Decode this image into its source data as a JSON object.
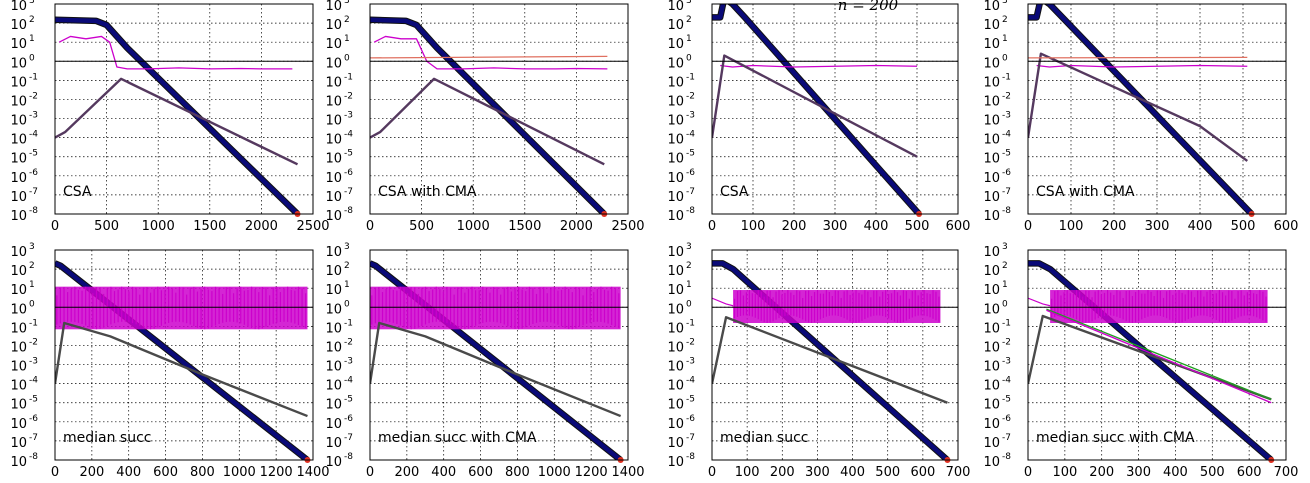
{
  "figure": {
    "top_label": "n = 200"
  },
  "chart_data": [
    {
      "id": "p1",
      "type": "line",
      "label": "CSA",
      "xlim": [
        0,
        2500
      ],
      "ylim_exp": [
        -8,
        3
      ],
      "log_y": true,
      "xticks": [
        "0",
        "500",
        "1000",
        "1500",
        "2000",
        "2500"
      ],
      "series": [
        {
          "role": "f",
          "color": "#0a0a78",
          "points": [
            [
              0,
              150
            ],
            [
              400,
              130
            ],
            [
              500,
              80
            ],
            [
              600,
              20
            ],
            [
              700,
              5
            ],
            [
              2350,
              1e-08
            ]
          ]
        },
        {
          "role": "step",
          "color": "#cc00cc",
          "points": [
            [
              40,
              10
            ],
            [
              150,
              20
            ],
            [
              300,
              15
            ],
            [
              450,
              20
            ],
            [
              530,
              10
            ],
            [
              600,
              0.5
            ],
            [
              700,
              0.4
            ],
            [
              900,
              0.4
            ],
            [
              1200,
              0.45
            ],
            [
              1500,
              0.4
            ],
            [
              1800,
              0.42
            ],
            [
              2000,
              0.4
            ],
            [
              2300,
              0.4
            ]
          ]
        },
        {
          "role": "sigma",
          "color": "#55395f",
          "points": [
            [
              0,
              0.0001
            ],
            [
              100,
              0.0002
            ],
            [
              640,
              0.12
            ],
            [
              2350,
              4e-06
            ]
          ]
        },
        {
          "role": "reference",
          "color": "#000000",
          "points": [
            [
              0,
              1
            ],
            [
              2500,
              1
            ]
          ]
        }
      ]
    },
    {
      "id": "p2",
      "type": "line",
      "label": "CSA with CMA",
      "xlim": [
        0,
        2500
      ],
      "ylim_exp": [
        -8,
        3
      ],
      "log_y": true,
      "xticks": [
        "0",
        "500",
        "1000",
        "1500",
        "2000",
        "2500"
      ],
      "series": [
        {
          "role": "f",
          "color": "#0a0a78",
          "points": [
            [
              0,
              150
            ],
            [
              350,
              130
            ],
            [
              450,
              80
            ],
            [
              550,
              20
            ],
            [
              650,
              5
            ],
            [
              2270,
              1e-08
            ]
          ]
        },
        {
          "role": "step",
          "color": "#cc00cc",
          "points": [
            [
              40,
              10
            ],
            [
              150,
              20
            ],
            [
              300,
              15
            ],
            [
              450,
              15
            ],
            [
              550,
              1
            ],
            [
              650,
              0.4
            ],
            [
              900,
              0.4
            ],
            [
              1200,
              0.45
            ],
            [
              1500,
              0.4
            ],
            [
              1800,
              0.4
            ],
            [
              2000,
              0.42
            ],
            [
              2300,
              0.4
            ]
          ]
        },
        {
          "role": "sigma",
          "color": "#55395f",
          "points": [
            [
              0,
              0.0001
            ],
            [
              100,
              0.0002
            ],
            [
              620,
              0.12
            ],
            [
              2270,
              4e-06
            ]
          ]
        },
        {
          "role": "axis-ratio",
          "color": "#e07060",
          "points": [
            [
              0,
              1.5
            ],
            [
              2300,
              1.8
            ]
          ]
        },
        {
          "role": "reference",
          "color": "#000000",
          "points": [
            [
              0,
              1
            ],
            [
              2500,
              1
            ]
          ]
        }
      ]
    },
    {
      "id": "p3",
      "type": "line",
      "label": "CSA",
      "xlim": [
        0,
        600
      ],
      "ylim_exp": [
        -8,
        3
      ],
      "log_y": true,
      "xticks": [
        "0",
        "100",
        "200",
        "300",
        "400",
        "500",
        "600"
      ],
      "series": [
        {
          "role": "f",
          "color": "#0a0a78",
          "points": [
            [
              0,
              200
            ],
            [
              20,
              200
            ],
            [
              30,
              2000
            ],
            [
              50,
              1000
            ],
            [
              80,
              200
            ],
            [
              505,
              1e-08
            ]
          ]
        },
        {
          "role": "step",
          "color": "#cc00cc",
          "points": [
            [
              20,
              0.6
            ],
            [
              50,
              0.5
            ],
            [
              100,
              0.6
            ],
            [
              200,
              0.5
            ],
            [
              300,
              0.55
            ],
            [
              400,
              0.6
            ],
            [
              500,
              0.55
            ]
          ]
        },
        {
          "role": "sigma",
          "color": "#55395f",
          "points": [
            [
              0,
              0.0001
            ],
            [
              30,
              2
            ],
            [
              500,
              1e-05
            ]
          ]
        },
        {
          "role": "reference",
          "color": "#000000",
          "points": [
            [
              0,
              1
            ],
            [
              600,
              1
            ]
          ]
        }
      ]
    },
    {
      "id": "p4",
      "type": "line",
      "label": "CSA with CMA",
      "xlim": [
        0,
        600
      ],
      "ylim_exp": [
        -8,
        3
      ],
      "log_y": true,
      "xticks": [
        "0",
        "100",
        "200",
        "300",
        "400",
        "500",
        "600"
      ],
      "series": [
        {
          "role": "f",
          "color": "#0a0a78",
          "points": [
            [
              0,
              200
            ],
            [
              20,
              200
            ],
            [
              30,
              2000
            ],
            [
              50,
              1000
            ],
            [
              80,
              200
            ],
            [
              520,
              1e-08
            ]
          ]
        },
        {
          "role": "step",
          "color": "#cc00cc",
          "points": [
            [
              20,
              0.6
            ],
            [
              50,
              0.5
            ],
            [
              100,
              0.6
            ],
            [
              200,
              0.5
            ],
            [
              300,
              0.55
            ],
            [
              400,
              0.6
            ],
            [
              510,
              0.55
            ]
          ]
        },
        {
          "role": "sigma",
          "color": "#55395f",
          "points": [
            [
              0,
              0.0001
            ],
            [
              30,
              2.5
            ],
            [
              400,
              0.0004
            ],
            [
              510,
              6e-06
            ]
          ]
        },
        {
          "role": "axis-ratio",
          "color": "#e07060",
          "points": [
            [
              0,
              1.5
            ],
            [
              510,
              1.6
            ]
          ]
        },
        {
          "role": "reference",
          "color": "#000000",
          "points": [
            [
              0,
              1
            ],
            [
              600,
              1
            ]
          ]
        }
      ]
    },
    {
      "id": "p5",
      "type": "line",
      "label": "median succ",
      "xlim": [
        0,
        1400
      ],
      "ylim_exp": [
        -8,
        3
      ],
      "log_y": true,
      "xticks": [
        "0",
        "200",
        "400",
        "600",
        "800",
        "1000",
        "1200",
        "1400"
      ],
      "series": [
        {
          "role": "f",
          "color": "#0a0a78",
          "points": [
            [
              0,
              200
            ],
            [
              30,
              150
            ],
            [
              1370,
              1e-08
            ]
          ]
        },
        {
          "role": "step",
          "color": "#cc00cc",
          "band": [
            0.07,
            12
          ],
          "points": [
            [
              0,
              1.2
            ],
            [
              1370,
              1.2
            ]
          ]
        },
        {
          "role": "sigma",
          "color": "#4a4a4a",
          "points": [
            [
              0,
              0.0001
            ],
            [
              50,
              0.15
            ],
            [
              300,
              0.03
            ],
            [
              800,
              0.0003
            ],
            [
              1370,
              2e-06
            ]
          ]
        },
        {
          "role": "reference",
          "color": "#000000",
          "points": [
            [
              0,
              1
            ],
            [
              1400,
              1
            ]
          ]
        }
      ]
    },
    {
      "id": "p6",
      "type": "line",
      "label": "median succ with CMA",
      "xlim": [
        0,
        1400
      ],
      "ylim_exp": [
        -8,
        3
      ],
      "log_y": true,
      "xticks": [
        "0",
        "200",
        "400",
        "600",
        "800",
        "1000",
        "1200",
        "1400"
      ],
      "series": [
        {
          "role": "f",
          "color": "#0a0a78",
          "points": [
            [
              0,
              200
            ],
            [
              30,
              150
            ],
            [
              1360,
              1e-08
            ]
          ]
        },
        {
          "role": "step",
          "color": "#cc00cc",
          "band": [
            0.07,
            12
          ],
          "points": [
            [
              0,
              1.2
            ],
            [
              1360,
              1.2
            ]
          ]
        },
        {
          "role": "sigma",
          "color": "#4a4a4a",
          "points": [
            [
              0,
              0.0001
            ],
            [
              50,
              0.15
            ],
            [
              300,
              0.03
            ],
            [
              800,
              0.0003
            ],
            [
              1360,
              2e-06
            ]
          ]
        },
        {
          "role": "reference",
          "color": "#000000",
          "points": [
            [
              0,
              1
            ],
            [
              1400,
              1
            ]
          ]
        }
      ]
    },
    {
      "id": "p7",
      "type": "line",
      "label": "median succ",
      "xlim": [
        0,
        700
      ],
      "ylim_exp": [
        -8,
        3
      ],
      "log_y": true,
      "xticks": [
        "0",
        "100",
        "200",
        "300",
        "400",
        "500",
        "600",
        "700"
      ],
      "series": [
        {
          "role": "f",
          "color": "#0a0a78",
          "points": [
            [
              0,
              200
            ],
            [
              30,
              200
            ],
            [
              60,
              100
            ],
            [
              670,
              1e-08
            ]
          ]
        },
        {
          "role": "step",
          "color": "#cc00cc",
          "band": [
            0.15,
            8
          ],
          "points": [
            [
              0,
              3
            ],
            [
              40,
              1.5
            ],
            [
              60,
              1.2
            ],
            [
              650,
              1.2
            ]
          ]
        },
        {
          "role": "sigma",
          "color": "#4a4a4a",
          "points": [
            [
              0,
              0.0001
            ],
            [
              40,
              0.3
            ],
            [
              670,
              1e-05
            ]
          ]
        },
        {
          "role": "reference",
          "color": "#000000",
          "points": [
            [
              0,
              1
            ],
            [
              700,
              1
            ]
          ]
        }
      ]
    },
    {
      "id": "p8",
      "type": "line",
      "label": "median succ with CMA",
      "xlim": [
        0,
        700
      ],
      "ylim_exp": [
        -8,
        3
      ],
      "log_y": true,
      "xticks": [
        "0",
        "100",
        "200",
        "300",
        "400",
        "500",
        "600",
        "700"
      ],
      "series": [
        {
          "role": "f",
          "color": "#0a0a78",
          "points": [
            [
              0,
              200
            ],
            [
              30,
              200
            ],
            [
              60,
              100
            ],
            [
              660,
              1e-08
            ]
          ]
        },
        {
          "role": "step",
          "color": "#cc00cc",
          "band": [
            0.15,
            8
          ],
          "points": [
            [
              0,
              3
            ],
            [
              40,
              1.5
            ],
            [
              60,
              1.2
            ],
            [
              650,
              1.2
            ]
          ]
        },
        {
          "role": "sigma",
          "color": "#4a4a4a",
          "points": [
            [
              0,
              0.0001
            ],
            [
              40,
              0.35
            ],
            [
              660,
              1.5e-05
            ]
          ]
        },
        {
          "role": "axis-ratio",
          "color": "#20a020",
          "points": [
            [
              50,
              0.8
            ],
            [
              660,
              1.5e-05
            ]
          ]
        },
        {
          "role": "axis-ratio-2",
          "color": "#cc00cc",
          "points": [
            [
              50,
              0.7
            ],
            [
              660,
              1e-05
            ]
          ]
        },
        {
          "role": "reference",
          "color": "#000000",
          "points": [
            [
              0,
              1
            ],
            [
              700,
              1
            ]
          ]
        }
      ]
    }
  ]
}
